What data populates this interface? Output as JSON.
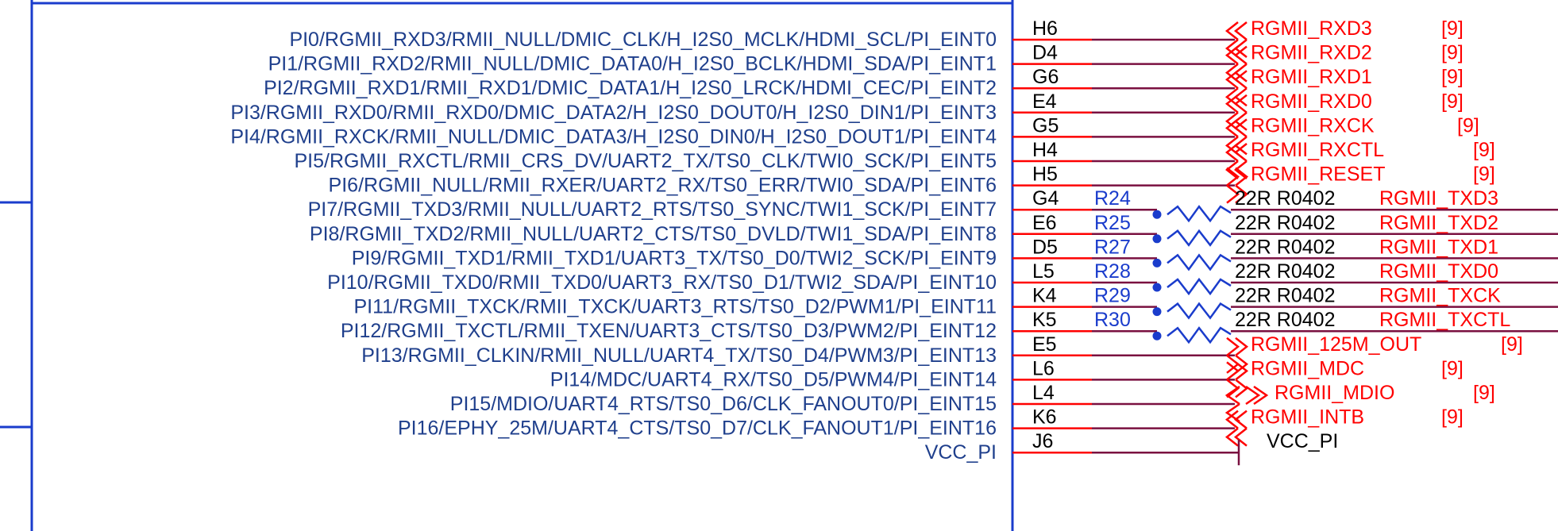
{
  "colors": {
    "component_outline": "#1a3ccc",
    "pin_line": "#ff0000",
    "wire": "#7a1040",
    "net_label": "#ff0000",
    "pin_name_text": "#1f3f8c",
    "junction_dot": "#1a3ccc",
    "resistor_symbol": "#1a3ccc"
  },
  "pins": [
    {
      "name": "PI0/RGMII_RXD3/RMII_NULL/DMIC_CLK/H_I2S0_MCLK/HDMI_SCL/PI_EINT0",
      "number": "H6",
      "type": "port",
      "net": "RGMII_RXD3",
      "ref": "[9]"
    },
    {
      "name": "PI1/RGMII_RXD2/RMII_NULL/DMIC_DATA0/H_I2S0_BCLK/HDMI_SDA/PI_EINT1",
      "number": "D4",
      "type": "port",
      "net": "RGMII_RXD2",
      "ref": "[9]"
    },
    {
      "name": "PI2/RGMII_RXD1/RMII_RXD1/DMIC_DATA1/H_I2S0_LRCK/HDMI_CEC/PI_EINT2",
      "number": "G6",
      "type": "port",
      "net": "RGMII_RXD1",
      "ref": "[9]"
    },
    {
      "name": "PI3/RGMII_RXD0/RMII_RXD0/DMIC_DATA2/H_I2S0_DOUT0/H_I2S0_DIN1/PI_EINT3",
      "number": "E4",
      "type": "port",
      "net": "RGMII_RXD0",
      "ref": "[9]"
    },
    {
      "name": "PI4/RGMII_RXCK/RMII_NULL/DMIC_DATA3/H_I2S0_DIN0/H_I2S0_DOUT1/PI_EINT4",
      "number": "G5",
      "type": "port",
      "net": "RGMII_RXCK",
      "ref": "[9]"
    },
    {
      "name": "PI5/RGMII_RXCTL/RMII_CRS_DV/UART2_TX/TS0_CLK/TWI0_SCK/PI_EINT5",
      "number": "H4",
      "type": "port",
      "net": "RGMII_RXCTL",
      "ref": "[9]"
    },
    {
      "name": "PI6/RGMII_NULL/RMII_RXER/UART2_RX/TS0_ERR/TWI0_SDA/PI_EINT6",
      "number": "H5",
      "type": "port-out",
      "net": "RGMII_RESET",
      "ref": "[9]"
    },
    {
      "name": "PI7/RGMII_TXD3/RMII_NULL/UART2_RTS/TS0_SYNC/TWI1_SCK/PI_EINT7",
      "number": "G4",
      "type": "resistor",
      "net": "RGMII_TXD3",
      "res_ref": "R24",
      "res_val": "22R R0402"
    },
    {
      "name": "PI8/RGMII_TXD2/RMII_NULL/UART2_CTS/TS0_DVLD/TWI1_SDA/PI_EINT8",
      "number": "E6",
      "type": "resistor",
      "net": "RGMII_TXD2",
      "res_ref": "R25",
      "res_val": "22R R0402"
    },
    {
      "name": "PI9/RGMII_TXD1/RMII_TXD1/UART3_TX/TS0_D0/TWI2_SCK/PI_EINT9",
      "number": "D5",
      "type": "resistor",
      "net": "RGMII_TXD1",
      "res_ref": "R27",
      "res_val": "22R R0402"
    },
    {
      "name": "PI10/RGMII_TXD0/RMII_TXD0/UART3_RX/TS0_D1/TWI2_SDA/PI_EINT10",
      "number": "L5",
      "type": "resistor",
      "net": "RGMII_TXD0",
      "res_ref": "R28",
      "res_val": "22R R0402"
    },
    {
      "name": "PI11/RGMII_TXCK/RMII_TXCK/UART3_RTS/TS0_D2/PWM1/PI_EINT11",
      "number": "K4",
      "type": "resistor",
      "net": "RGMII_TXCK",
      "res_ref": "R29",
      "res_val": "22R R0402"
    },
    {
      "name": "PI12/RGMII_TXCTL/RMII_TXEN/UART3_CTS/TS0_D3/PWM2/PI_EINT12",
      "number": "K5",
      "type": "resistor",
      "net": "RGMII_TXCTL",
      "res_ref": "R30",
      "res_val": "22R R0402"
    },
    {
      "name": "PI13/RGMII_CLKIN/RMII_NULL/UART4_TX/TS0_D4/PWM3/PI_EINT13",
      "number": "E5",
      "type": "port-out",
      "net": "RGMII_125M_OUT",
      "ref": "[9]"
    },
    {
      "name": "PI14/MDC/UART4_RX/TS0_D5/PWM4/PI_EINT14",
      "number": "L6",
      "type": "port-out",
      "net": "RGMII_MDC",
      "ref": "[9]"
    },
    {
      "name": "PI15/MDIO/UART4_RTS/TS0_D6/CLK_FANOUT0/PI_EINT15",
      "number": "L4",
      "type": "port-bidir",
      "net": "RGMII_MDIO",
      "ref": "[9]"
    },
    {
      "name": "PI16/EPHY_25M/UART4_CTS/TS0_D7/CLK_FANOUT1/PI_EINT16",
      "number": "K6",
      "type": "port",
      "net": "RGMII_INTB",
      "ref": "[9]"
    },
    {
      "name": "VCC_PI",
      "number": "J6",
      "type": "power",
      "net": "VCC_PI"
    }
  ]
}
